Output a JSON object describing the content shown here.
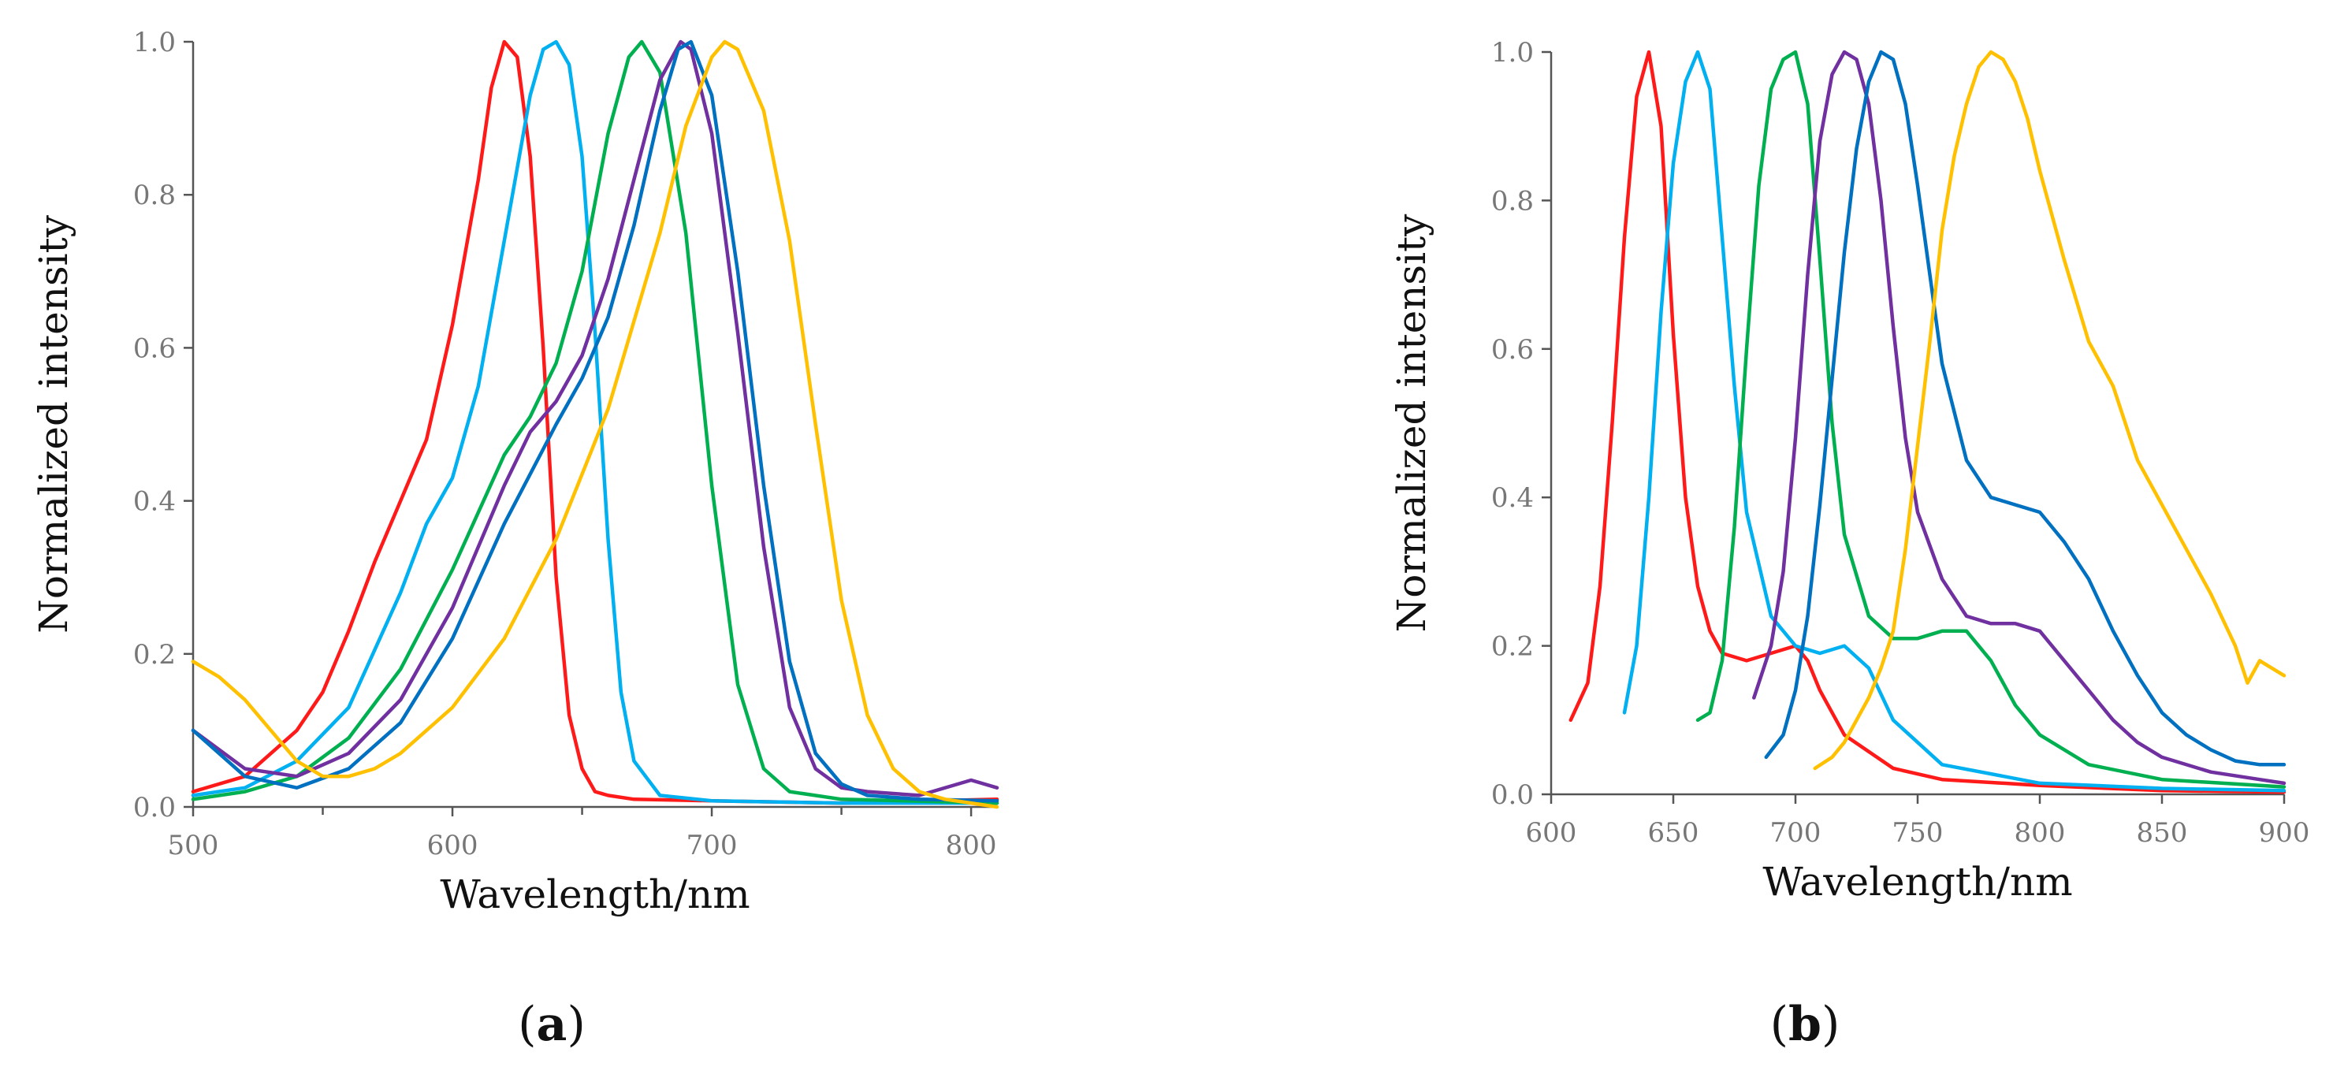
{
  "chart_data": [
    {
      "type": "line",
      "panel_label": "a",
      "title": "",
      "xlabel": "Wavelength/nm",
      "ylabel": "Normalized intensity",
      "xlim": [
        500,
        810
      ],
      "ylim": [
        0,
        1.0
      ],
      "xticks": [
        500,
        600,
        700,
        800
      ],
      "xticks_minor": [
        550,
        650,
        750
      ],
      "yticks": [
        0.0,
        0.2,
        0.4,
        0.6,
        0.8,
        1.0
      ],
      "ytick_labels": [
        "0.0",
        "0.2",
        "0.4",
        "0.6",
        "0.8",
        "1.0"
      ],
      "grid": false,
      "legend": "none",
      "series": [
        {
          "name": "red",
          "color": "#ff1a1a",
          "x": [
            500,
            520,
            540,
            550,
            560,
            570,
            580,
            590,
            600,
            610,
            615,
            620,
            625,
            630,
            635,
            640,
            645,
            650,
            655,
            660,
            670,
            700,
            750,
            810
          ],
          "y": [
            0.02,
            0.04,
            0.1,
            0.15,
            0.23,
            0.32,
            0.4,
            0.48,
            0.63,
            0.82,
            0.94,
            1.0,
            0.98,
            0.85,
            0.6,
            0.3,
            0.12,
            0.05,
            0.02,
            0.015,
            0.01,
            0.008,
            0.005,
            0.01
          ]
        },
        {
          "name": "cyan",
          "color": "#00b0f0",
          "x": [
            500,
            520,
            540,
            560,
            580,
            590,
            600,
            610,
            620,
            630,
            635,
            640,
            645,
            650,
            655,
            660,
            665,
            670,
            680,
            700,
            750,
            810
          ],
          "y": [
            0.015,
            0.025,
            0.06,
            0.13,
            0.28,
            0.37,
            0.43,
            0.55,
            0.74,
            0.93,
            0.99,
            1.0,
            0.97,
            0.85,
            0.62,
            0.35,
            0.15,
            0.06,
            0.015,
            0.008,
            0.005,
            0.005
          ]
        },
        {
          "name": "green",
          "color": "#00b050",
          "x": [
            500,
            520,
            540,
            560,
            580,
            600,
            620,
            630,
            640,
            650,
            660,
            668,
            673,
            680,
            690,
            700,
            710,
            720,
            730,
            750,
            810
          ],
          "y": [
            0.01,
            0.02,
            0.04,
            0.09,
            0.18,
            0.31,
            0.46,
            0.51,
            0.58,
            0.7,
            0.88,
            0.98,
            1.0,
            0.96,
            0.75,
            0.42,
            0.16,
            0.05,
            0.02,
            0.01,
            0.005
          ]
        },
        {
          "name": "purple",
          "color": "#7030a0",
          "x": [
            500,
            520,
            540,
            560,
            580,
            600,
            620,
            630,
            640,
            650,
            660,
            670,
            680,
            688,
            692,
            700,
            710,
            720,
            730,
            740,
            750,
            760,
            780,
            800,
            810
          ],
          "y": [
            0.1,
            0.05,
            0.04,
            0.07,
            0.14,
            0.26,
            0.42,
            0.49,
            0.53,
            0.59,
            0.69,
            0.82,
            0.95,
            1.0,
            0.99,
            0.88,
            0.62,
            0.34,
            0.13,
            0.05,
            0.025,
            0.02,
            0.015,
            0.035,
            0.025
          ]
        },
        {
          "name": "blue",
          "color": "#0070c0",
          "x": [
            500,
            520,
            540,
            560,
            580,
            600,
            620,
            640,
            650,
            660,
            670,
            680,
            687,
            692,
            700,
            710,
            720,
            730,
            740,
            750,
            760,
            780,
            810
          ],
          "y": [
            0.1,
            0.04,
            0.025,
            0.05,
            0.11,
            0.22,
            0.37,
            0.5,
            0.56,
            0.64,
            0.76,
            0.91,
            0.99,
            1.0,
            0.93,
            0.7,
            0.42,
            0.19,
            0.07,
            0.03,
            0.015,
            0.01,
            0.008
          ]
        },
        {
          "name": "yellow",
          "color": "#ffc000",
          "x": [
            500,
            510,
            520,
            530,
            540,
            550,
            560,
            570,
            580,
            600,
            620,
            640,
            660,
            680,
            690,
            700,
            705,
            710,
            720,
            730,
            740,
            750,
            760,
            770,
            780,
            790,
            800,
            810
          ],
          "y": [
            0.19,
            0.17,
            0.14,
            0.1,
            0.06,
            0.04,
            0.04,
            0.05,
            0.07,
            0.13,
            0.22,
            0.35,
            0.52,
            0.75,
            0.89,
            0.98,
            1.0,
            0.99,
            0.91,
            0.74,
            0.5,
            0.27,
            0.12,
            0.05,
            0.02,
            0.01,
            0.005,
            0.0
          ]
        }
      ]
    },
    {
      "type": "line",
      "panel_label": "b",
      "title": "",
      "xlabel": "Wavelength/nm",
      "ylabel": "Normalized intensity",
      "xlim": [
        600,
        900
      ],
      "ylim": [
        0,
        1.0
      ],
      "xticks": [
        600,
        650,
        700,
        750,
        800,
        850,
        900
      ],
      "xticks_minor": [],
      "yticks": [
        0.0,
        0.2,
        0.4,
        0.6,
        0.8,
        1.0
      ],
      "ytick_labels": [
        "0.0",
        "0.2",
        "0.4",
        "0.6",
        "0.8",
        "1.0"
      ],
      "grid": false,
      "legend": "none",
      "series": [
        {
          "name": "red",
          "color": "#ff1a1a",
          "x": [
            608,
            615,
            620,
            625,
            630,
            635,
            640,
            645,
            650,
            655,
            660,
            665,
            670,
            680,
            690,
            700,
            705,
            710,
            720,
            740,
            760,
            800,
            850,
            900
          ],
          "y": [
            0.1,
            0.15,
            0.28,
            0.5,
            0.75,
            0.94,
            1.0,
            0.9,
            0.62,
            0.4,
            0.28,
            0.22,
            0.19,
            0.18,
            0.19,
            0.2,
            0.18,
            0.14,
            0.08,
            0.035,
            0.02,
            0.012,
            0.005,
            0.003
          ]
        },
        {
          "name": "cyan",
          "color": "#00b0f0",
          "x": [
            630,
            635,
            640,
            645,
            650,
            655,
            660,
            665,
            670,
            675,
            680,
            690,
            700,
            710,
            720,
            730,
            740,
            760,
            800,
            850,
            900
          ],
          "y": [
            0.11,
            0.2,
            0.4,
            0.65,
            0.85,
            0.96,
            1.0,
            0.95,
            0.75,
            0.55,
            0.38,
            0.24,
            0.2,
            0.19,
            0.2,
            0.17,
            0.1,
            0.04,
            0.015,
            0.008,
            0.005
          ]
        },
        {
          "name": "green",
          "color": "#00b050",
          "x": [
            660,
            665,
            670,
            675,
            680,
            685,
            690,
            695,
            700,
            705,
            710,
            715,
            720,
            730,
            740,
            750,
            760,
            770,
            780,
            790,
            800,
            820,
            850,
            900
          ],
          "y": [
            0.1,
            0.11,
            0.18,
            0.36,
            0.6,
            0.82,
            0.95,
            0.99,
            1.0,
            0.93,
            0.72,
            0.5,
            0.35,
            0.24,
            0.21,
            0.21,
            0.22,
            0.22,
            0.18,
            0.12,
            0.08,
            0.04,
            0.02,
            0.01
          ]
        },
        {
          "name": "purple",
          "color": "#7030a0",
          "x": [
            683,
            690,
            695,
            700,
            705,
            710,
            715,
            720,
            725,
            730,
            735,
            740,
            745,
            750,
            760,
            770,
            780,
            790,
            800,
            810,
            820,
            830,
            840,
            850,
            870,
            890,
            900
          ],
          "y": [
            0.13,
            0.2,
            0.3,
            0.48,
            0.7,
            0.88,
            0.97,
            1.0,
            0.99,
            0.93,
            0.8,
            0.63,
            0.48,
            0.38,
            0.29,
            0.24,
            0.23,
            0.23,
            0.22,
            0.18,
            0.14,
            0.1,
            0.07,
            0.05,
            0.03,
            0.02,
            0.015
          ]
        },
        {
          "name": "blue",
          "color": "#0070c0",
          "x": [
            688,
            695,
            700,
            705,
            710,
            715,
            720,
            725,
            730,
            735,
            740,
            745,
            750,
            755,
            760,
            770,
            780,
            790,
            800,
            810,
            820,
            830,
            840,
            850,
            860,
            870,
            880,
            890,
            900
          ],
          "y": [
            0.05,
            0.08,
            0.14,
            0.24,
            0.39,
            0.56,
            0.73,
            0.87,
            0.96,
            1.0,
            0.99,
            0.93,
            0.82,
            0.7,
            0.58,
            0.45,
            0.4,
            0.39,
            0.38,
            0.34,
            0.29,
            0.22,
            0.16,
            0.11,
            0.08,
            0.06,
            0.045,
            0.04,
            0.04
          ]
        },
        {
          "name": "yellow",
          "color": "#ffc000",
          "x": [
            708,
            715,
            720,
            725,
            730,
            735,
            740,
            745,
            750,
            755,
            760,
            765,
            770,
            775,
            780,
            785,
            790,
            795,
            800,
            810,
            820,
            830,
            840,
            850,
            860,
            870,
            880,
            885,
            890,
            895,
            900
          ],
          "y": [
            0.035,
            0.05,
            0.07,
            0.1,
            0.13,
            0.17,
            0.22,
            0.33,
            0.47,
            0.61,
            0.76,
            0.86,
            0.93,
            0.98,
            1.0,
            0.99,
            0.96,
            0.91,
            0.84,
            0.72,
            0.61,
            0.55,
            0.45,
            0.39,
            0.33,
            0.27,
            0.2,
            0.15,
            0.18,
            0.17,
            0.16
          ]
        }
      ]
    }
  ]
}
